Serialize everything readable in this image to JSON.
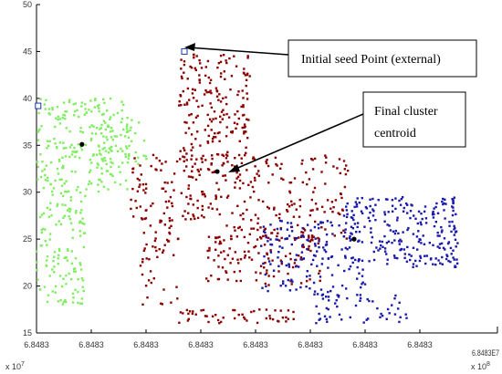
{
  "chart_data": {
    "type": "scatter",
    "title": "",
    "xlabel": "",
    "ylabel": "",
    "x_exponent_label": "x 10",
    "x_exponent_power": "7",
    "x_exponent_label_right": "x 10",
    "x_exponent_power_right": "8",
    "x_overlap_label": "6.8483E7",
    "xlim": [
      0,
      1
    ],
    "ylim": [
      15,
      50
    ],
    "x_ticks": [
      {
        "value": 0.0,
        "label": "6.8483"
      },
      {
        "value": 0.1,
        "label": "6.8483"
      },
      {
        "value": 0.2,
        "label": "6.8483"
      },
      {
        "value": 0.3,
        "label": "6.8483"
      },
      {
        "value": 0.4,
        "label": "6.8483"
      },
      {
        "value": 0.5,
        "label": "6.8483"
      },
      {
        "value": 0.6,
        "label": "6.8483"
      },
      {
        "value": 0.7,
        "label": "6.8483"
      }
    ],
    "y_ticks": [
      {
        "value": 15,
        "label": "15"
      },
      {
        "value": 20,
        "label": "20"
      },
      {
        "value": 25,
        "label": "25"
      },
      {
        "value": 30,
        "label": "30"
      },
      {
        "value": 35,
        "label": "35"
      },
      {
        "value": 40,
        "label": "40"
      },
      {
        "value": 45,
        "label": "45"
      },
      {
        "value": 50,
        "label": "50"
      }
    ],
    "grid": false,
    "legend": "none",
    "series": [
      {
        "color": "#80ee60",
        "regions": [
          {
            "x0": 0.0,
            "x1": 0.17,
            "y0": 30,
            "y1": 40,
            "count": 230
          },
          {
            "x0": 0.0,
            "x1": 0.09,
            "y0": 18,
            "y1": 30,
            "count": 130
          },
          {
            "x0": 0.12,
            "x1": 0.21,
            "y0": 33,
            "y1": 38,
            "count": 40
          }
        ],
        "centroid": {
          "x": 0.083,
          "y": 35.1
        },
        "seed": {
          "x": 0.003,
          "y": 39.2
        }
      },
      {
        "color": "#8b0000",
        "regions": [
          {
            "x0": 0.26,
            "x1": 0.39,
            "y0": 33,
            "y1": 45,
            "count": 200
          },
          {
            "x0": 0.17,
            "x1": 0.33,
            "y0": 27,
            "y1": 34,
            "count": 120
          },
          {
            "x0": 0.33,
            "x1": 0.57,
            "y0": 25,
            "y1": 34,
            "count": 180
          },
          {
            "x0": 0.31,
            "x1": 0.52,
            "y0": 20,
            "y1": 26,
            "count": 120
          },
          {
            "x0": 0.19,
            "x1": 0.26,
            "y0": 18,
            "y1": 27,
            "count": 50
          },
          {
            "x0": 0.26,
            "x1": 0.48,
            "y0": 16,
            "y1": 17.5,
            "count": 50
          }
        ],
        "centroid": {
          "x": 0.33,
          "y": 32.2
        },
        "seed": {
          "x": 0.27,
          "y": 45.0
        }
      },
      {
        "color": "#1a1aaa",
        "regions": [
          {
            "x0": 0.56,
            "x1": 0.77,
            "y0": 22,
            "y1": 29.5,
            "count": 250
          },
          {
            "x0": 0.41,
            "x1": 0.6,
            "y0": 19,
            "y1": 27,
            "count": 160
          },
          {
            "x0": 0.5,
            "x1": 0.68,
            "y0": 16,
            "y1": 19,
            "count": 50
          }
        ],
        "centroid": {
          "x": 0.58,
          "y": 25.0
        },
        "seed": null
      }
    ],
    "annotations": [
      {
        "text": "Initial seed Point (external)",
        "target": {
          "x": 0.27,
          "y": 45.3
        }
      },
      {
        "text_line1": "Final  cluster",
        "text_line2": "centroid",
        "target": {
          "x": 0.33,
          "y": 32.2
        }
      }
    ]
  }
}
